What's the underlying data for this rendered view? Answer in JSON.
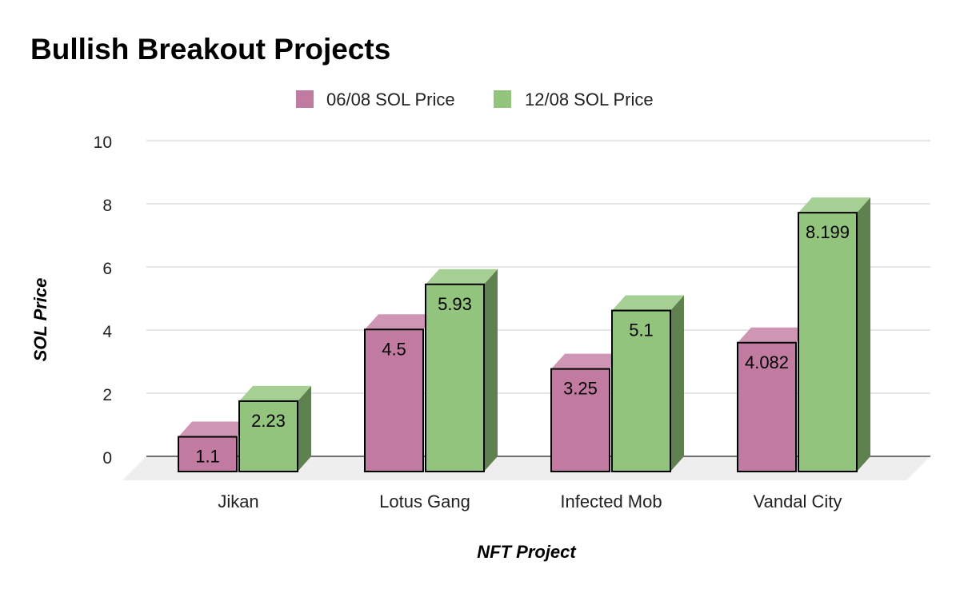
{
  "chart_data": {
    "type": "bar",
    "title": "Bullish Breakout Projects",
    "xlabel": "NFT Project",
    "ylabel": "SOL Price",
    "categories": [
      "Jikan",
      "Lotus Gang",
      "Infected Mob",
      "Vandal City"
    ],
    "series": [
      {
        "name": "06/08 SOL Price",
        "values": [
          1.1,
          4.5,
          3.25,
          4.082
        ],
        "labels": [
          "1.1",
          "4.5",
          "3.25",
          "4.082"
        ],
        "color": "#c27ba0",
        "top_color": "#cf95b4"
      },
      {
        "name": "12/08 SOL Price",
        "values": [
          2.23,
          5.93,
          5.1,
          8.199
        ],
        "labels": [
          "2.23",
          "5.93",
          "5.1",
          "8.199"
        ],
        "color": "#93c47d",
        "top_color": "#a6cf93",
        "side_color": "#5f804f"
      }
    ],
    "ylim": [
      0,
      10
    ],
    "yticks": [
      "0",
      "2",
      "4",
      "6",
      "8",
      "10"
    ],
    "grid": true,
    "legend": "top-center",
    "style": "3d"
  }
}
